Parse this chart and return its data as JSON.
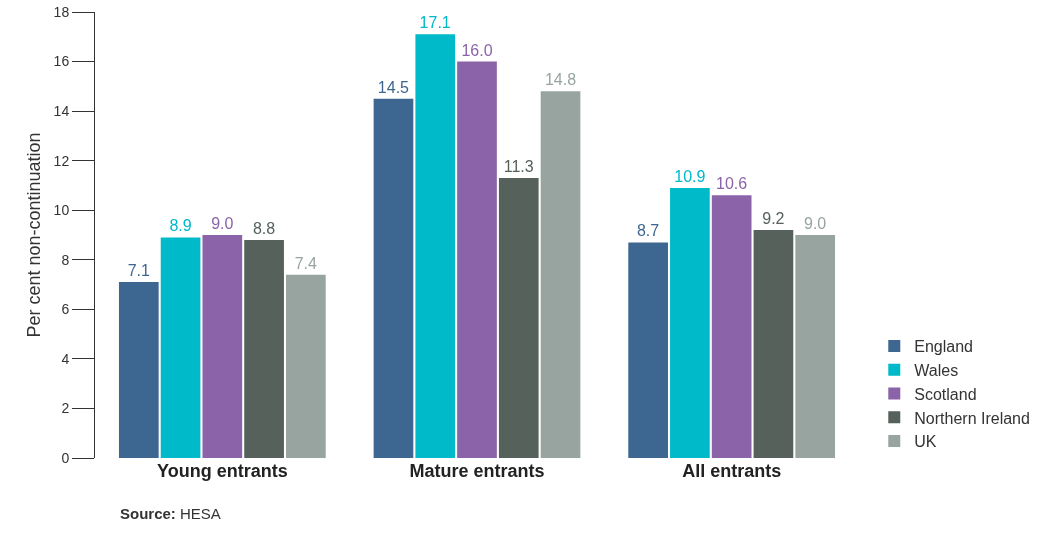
{
  "chart_data": {
    "type": "bar",
    "ylabel": "Per cent non-continuation",
    "categories": [
      "Young entrants",
      "Mature entrants",
      "All entrants"
    ],
    "series": [
      {
        "name": "England",
        "color": "#3d6690",
        "values": [
          7.1,
          14.5,
          8.7
        ],
        "value_labels": [
          "7.1",
          "14.5",
          "8.7"
        ]
      },
      {
        "name": "Wales",
        "color": "#00b9c9",
        "values": [
          8.9,
          17.1,
          10.9
        ],
        "value_labels": [
          "8.9",
          "17.1",
          "10.9"
        ]
      },
      {
        "name": "Scotland",
        "color": "#8b63a8",
        "values": [
          9.0,
          16.0,
          10.6
        ],
        "value_labels": [
          "9.0",
          "16.0",
          "10.6"
        ]
      },
      {
        "name": "Northern Ireland",
        "color": "#55615a",
        "values": [
          8.8,
          11.3,
          9.2
        ],
        "value_labels": [
          "8.8",
          "11.3",
          "9.2"
        ]
      },
      {
        "name": "UK",
        "color": "#98a4a0",
        "values": [
          7.4,
          14.8,
          9.0
        ],
        "value_labels": [
          "7.4",
          "14.8",
          "9.0"
        ]
      }
    ],
    "ylim": [
      0,
      18
    ],
    "yticks": [
      0,
      2,
      4,
      6,
      8,
      10,
      12,
      14,
      16,
      18
    ],
    "grid": false,
    "legend": "bottom right",
    "annotations": [
      "Source: HESA"
    ]
  }
}
